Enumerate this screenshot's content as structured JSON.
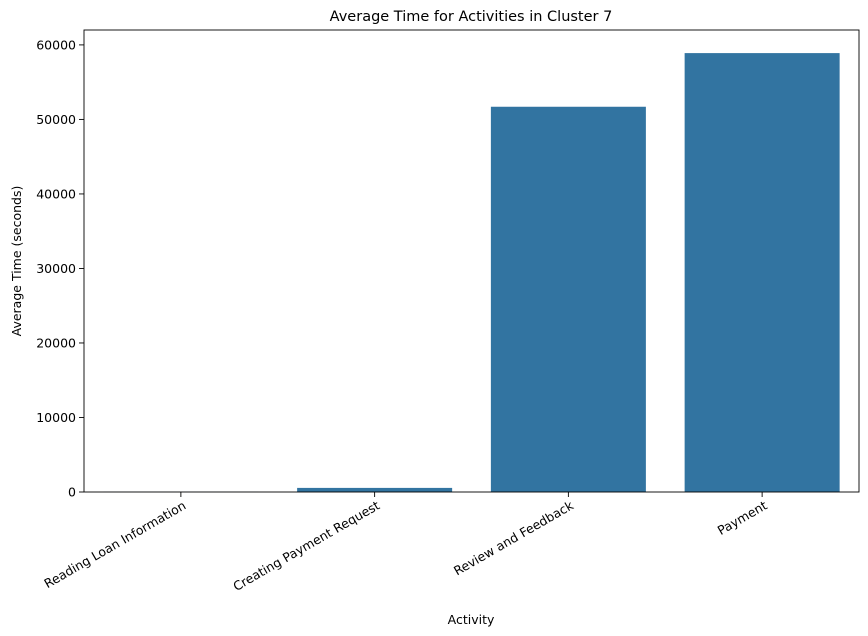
{
  "chart_data": {
    "type": "bar",
    "title": "Average Time for Activities in Cluster 7",
    "xlabel": "Activity",
    "ylabel": "Average Time (seconds)",
    "categories": [
      "Reading Loan Information",
      "Creating Payment Request",
      "Review and Feedback",
      "Payment"
    ],
    "values": [
      20,
      550,
      51700,
      58900
    ],
    "ylim": [
      0,
      62000
    ],
    "yticks": [
      0,
      10000,
      20000,
      30000,
      40000,
      50000,
      60000
    ],
    "bar_color": "#3274a1",
    "grid": false,
    "x_tick_rotation_deg": 30
  }
}
